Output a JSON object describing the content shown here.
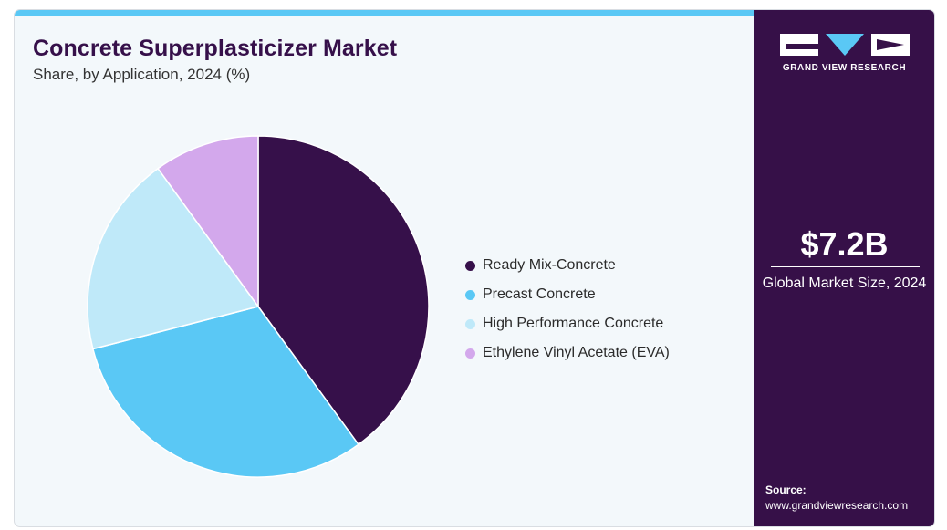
{
  "title": "Concrete Superplasticizer Market",
  "subtitle": "Share, by Application, 2024 (%)",
  "chart_data": {
    "type": "pie",
    "title": "Concrete Superplasticizer Market",
    "subtitle": "Share, by Application, 2024 (%)",
    "categories": [
      "Ready Mix-Concrete",
      "Precast Concrete",
      "High Performance Concrete",
      "Ethylene Vinyl Acetate (EVA)"
    ],
    "values": [
      40,
      31,
      19,
      10
    ],
    "colors": [
      "#36104a",
      "#5ac8f5",
      "#bfe9f9",
      "#d3a8ec"
    ],
    "legend_position": "right"
  },
  "sidebar": {
    "brand": "GRAND VIEW RESEARCH",
    "market_size": "$7.2B",
    "market_size_caption": "Global Market Size, 2024",
    "source_label": "Source:",
    "source_url": "www.grandviewresearch.com",
    "background_color": "#361048"
  }
}
